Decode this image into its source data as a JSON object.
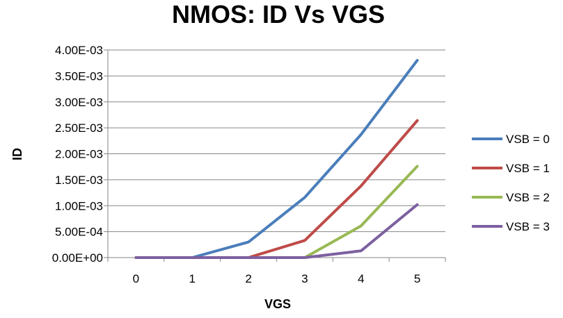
{
  "chart_data": {
    "type": "line",
    "title": "NMOS: ID Vs VGS",
    "xlabel": "VGS",
    "ylabel": "ID",
    "categories": [
      "0",
      "1",
      "2",
      "3",
      "4",
      "5"
    ],
    "ylim": [
      0,
      0.004
    ],
    "y_ticks": [
      0,
      0.0005,
      0.001,
      0.0015,
      0.002,
      0.0025,
      0.003,
      0.0035,
      0.004
    ],
    "y_tick_labels": [
      "0.00E+00",
      "5.00E-04",
      "1.00E-03",
      "1.50E-03",
      "2.00E-03",
      "2.50E-03",
      "3.00E-03",
      "3.50E-03",
      "4.00E-03"
    ],
    "grid": true,
    "legend_position": "right",
    "series": [
      {
        "name": "VSB = 0",
        "color": "#4a7ebb",
        "values": [
          0,
          0,
          0.0003,
          0.00116,
          0.00237,
          0.0038
        ]
      },
      {
        "name": "VSB = 1",
        "color": "#be4b48",
        "values": [
          0,
          0,
          0,
          0.00033,
          0.00138,
          0.00264
        ]
      },
      {
        "name": "VSB = 2",
        "color": "#98b954",
        "values": [
          0,
          0,
          0,
          0,
          0.00061,
          0.00176
        ]
      },
      {
        "name": "VSB = 3",
        "color": "#7d60a0",
        "values": [
          0,
          0,
          0,
          0,
          0.00013,
          0.00102
        ]
      }
    ]
  }
}
